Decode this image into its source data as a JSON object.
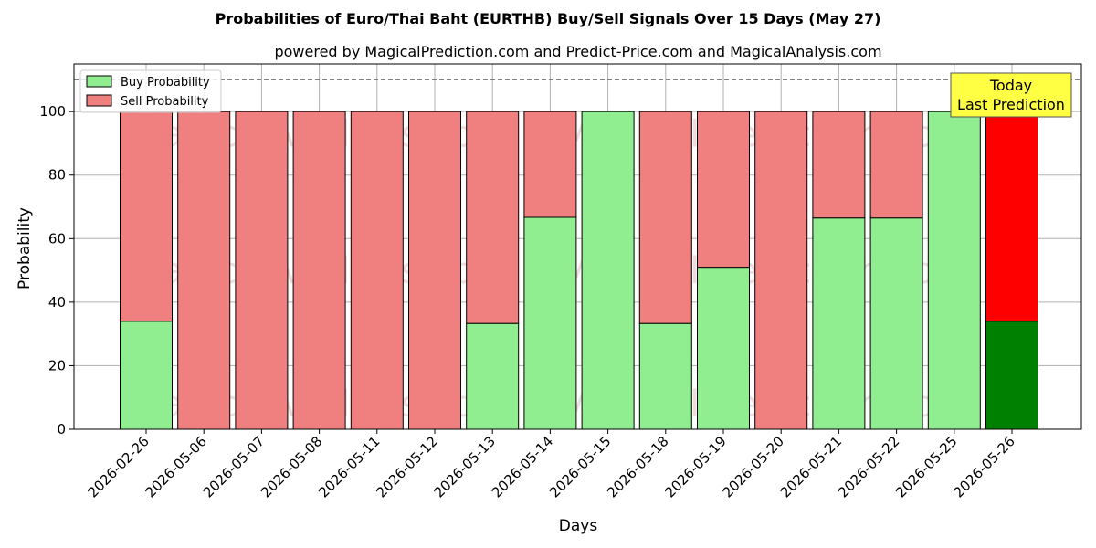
{
  "chart_data": {
    "type": "bar",
    "stacked": true,
    "title": "Probabilities of Euro/Thai Baht (EURTHB) Buy/Sell Signals Over 15 Days (May 27)",
    "subtitle": "powered by MagicalPrediction.com and Predict-Price.com and MagicalAnalysis.com",
    "xlabel": "Days",
    "ylabel": "Probability",
    "ylim": [
      0,
      115
    ],
    "yticks": [
      0,
      20,
      40,
      60,
      80,
      100
    ],
    "reference_line": 110,
    "grid": true,
    "legend_position": "top-left",
    "categories": [
      "2026-02-26",
      "2026-05-06",
      "2026-05-07",
      "2026-05-08",
      "2026-05-11",
      "2026-05-12",
      "2026-05-13",
      "2026-05-14",
      "2026-05-15",
      "2026-05-18",
      "2026-05-19",
      "2026-05-20",
      "2026-05-21",
      "2026-05-22",
      "2026-05-25",
      "2026-05-26"
    ],
    "series": [
      {
        "name": "Buy Probability",
        "color": "#90ee90",
        "highlight_color": "#008000",
        "values": [
          34,
          0,
          0,
          0,
          0,
          0,
          33.3,
          66.7,
          100,
          33.3,
          51,
          0,
          66.5,
          66.5,
          100,
          34
        ]
      },
      {
        "name": "Sell Probability",
        "color": "#f08080",
        "highlight_color": "#ff0000",
        "values": [
          66,
          100,
          100,
          100,
          100,
          100,
          66.7,
          33.3,
          0,
          66.7,
          49,
          100,
          33.5,
          33.5,
          0,
          66
        ]
      }
    ],
    "highlight_index": 15,
    "annotation": {
      "line1": "Today",
      "line2": "Last Prediction",
      "color": "#ffff44"
    },
    "watermarks": [
      "MagicalAnalysis.com",
      "MagicalPrediction.com"
    ]
  }
}
